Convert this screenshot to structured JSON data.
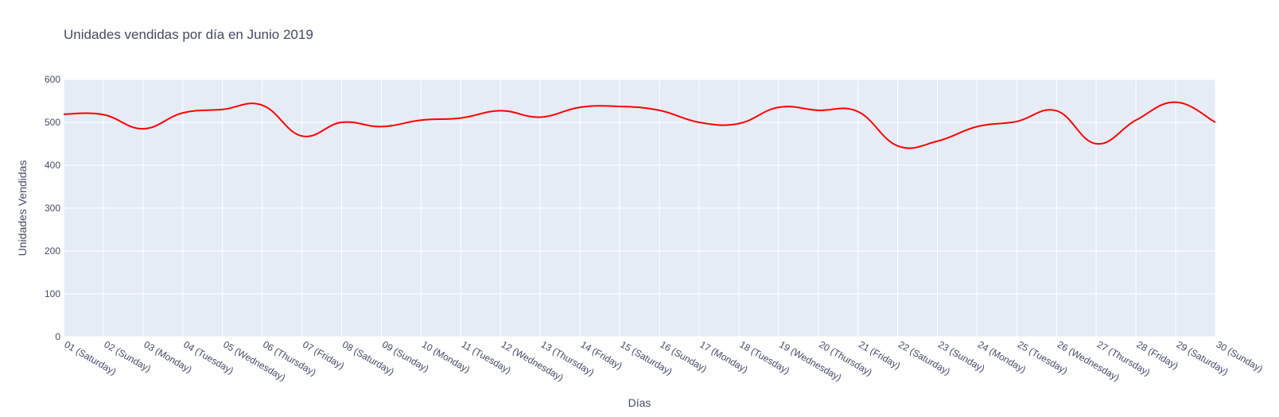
{
  "chart_data": {
    "type": "line",
    "title": "Unidades vendidas por día en Junio 2019",
    "xlabel": "Días",
    "ylabel": "Unidades Vendidas",
    "ylim": [
      0,
      600
    ],
    "yticks": [
      0,
      100,
      200,
      300,
      400,
      500,
      600
    ],
    "grid": true,
    "legend": "none",
    "colors": {
      "line": "#ff0000",
      "plot_bg": "#e5ecf6",
      "grid": "#ffffff",
      "text": "#444a63"
    },
    "categories": [
      "01 (Saturday)",
      "02 (Sunday)",
      "03 (Monday)",
      "04 (Tuesday)",
      "05 (Wednesday)",
      "06 (Thursday)",
      "07 (Friday)",
      "08 (Saturday)",
      "09 (Sunday)",
      "10 (Monday)",
      "11 (Tuesday)",
      "12 (Wednesday)",
      "13 (Thursday)",
      "14 (Friday)",
      "15 (Saturday)",
      "16 (Sunday)",
      "17 (Monday)",
      "18 (Tuesday)",
      "19 (Wednesday)",
      "20 (Thursday)",
      "21 (Friday)",
      "22 (Saturday)",
      "23 (Sunday)",
      "24 (Monday)",
      "25 (Tuesday)",
      "26 (Wednesday)",
      "27 (Thursday)",
      "28 (Friday)",
      "29 (Saturday)",
      "30 (Sunday)"
    ],
    "series": [
      {
        "values": [
          519,
          518,
          485,
          522,
          530,
          540,
          468,
          500,
          490,
          505,
          510,
          527,
          512,
          535,
          537,
          528,
          500,
          497,
          535,
          528,
          525,
          445,
          456,
          490,
          502,
          527,
          450,
          505,
          547,
          500
        ]
      }
    ]
  }
}
